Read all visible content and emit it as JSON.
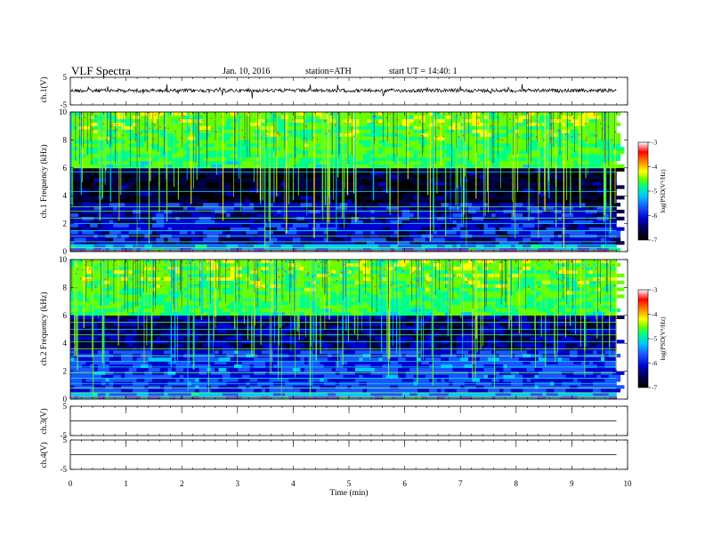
{
  "header": {
    "title": "VLF Spectra",
    "date": "Jan. 10, 2016",
    "station": "station=ATH",
    "start": "start UT = 14:40: 1"
  },
  "chart_data": [
    {
      "type": "line",
      "name": "ch1-waveform",
      "ylabel": "ch.1(V)",
      "ylim": [
        -5,
        5
      ],
      "yticks": [
        "5",
        "-5"
      ],
      "xlim": [
        0,
        10
      ],
      "data_xmax": 9.8,
      "level": 0.2,
      "color": "#000000"
    },
    {
      "type": "heatmap",
      "name": "ch1-spectrogram",
      "ylabel": "ch.1 Frequency (kHz)",
      "ylim": [
        0,
        10
      ],
      "yticks": [
        "0",
        "2",
        "4",
        "6",
        "8",
        "10"
      ],
      "xlim": [
        0,
        10
      ],
      "data_xmax": 9.8,
      "colorbar": {
        "label": "log(PSD(V²/Hz)",
        "range": [
          -7,
          -3
        ],
        "ticks": [
          "-3",
          "-4",
          "-5",
          "-6",
          "-7"
        ]
      }
    },
    {
      "type": "heatmap",
      "name": "ch2-spectrogram",
      "ylabel": "ch.2 Frequency (kHz)",
      "ylim": [
        0,
        10
      ],
      "yticks": [
        "0",
        "2",
        "4",
        "6",
        "8",
        "10"
      ],
      "xlim": [
        0,
        10
      ],
      "data_xmax": 9.8,
      "colorbar": {
        "label": "log(PSD(V²/Hz)",
        "range": [
          -7,
          -3
        ],
        "ticks": [
          "-3",
          "-4",
          "-5",
          "-6",
          "-7"
        ]
      }
    },
    {
      "type": "line",
      "name": "ch3-waveform",
      "ylabel": "ch.3(V)",
      "ylim": [
        -5,
        5
      ],
      "yticks": [
        "5",
        "-5"
      ],
      "xlim": [
        0,
        10
      ],
      "data_xmax": 9.8,
      "level": 0.0,
      "color": "#000000"
    },
    {
      "type": "line",
      "name": "ch4-waveform",
      "ylabel": "ch.4(V)",
      "ylim": [
        -5,
        5
      ],
      "yticks": [
        "5",
        "-5"
      ],
      "xlim": [
        0,
        10
      ],
      "data_xmax": 9.8,
      "level": 0.0,
      "color": "#000000"
    }
  ],
  "xaxis": {
    "label": "Time (min)",
    "ticks": [
      "0",
      "1",
      "2",
      "3",
      "4",
      "5",
      "6",
      "7",
      "8",
      "9",
      "10"
    ]
  },
  "colorscale": [
    "#000000",
    "#000044",
    "#0000cc",
    "#1a55ff",
    "#00c8ff",
    "#00ff88",
    "#66ff00",
    "#ffff00",
    "#ff8800",
    "#ff0000",
    "#ffffff"
  ]
}
